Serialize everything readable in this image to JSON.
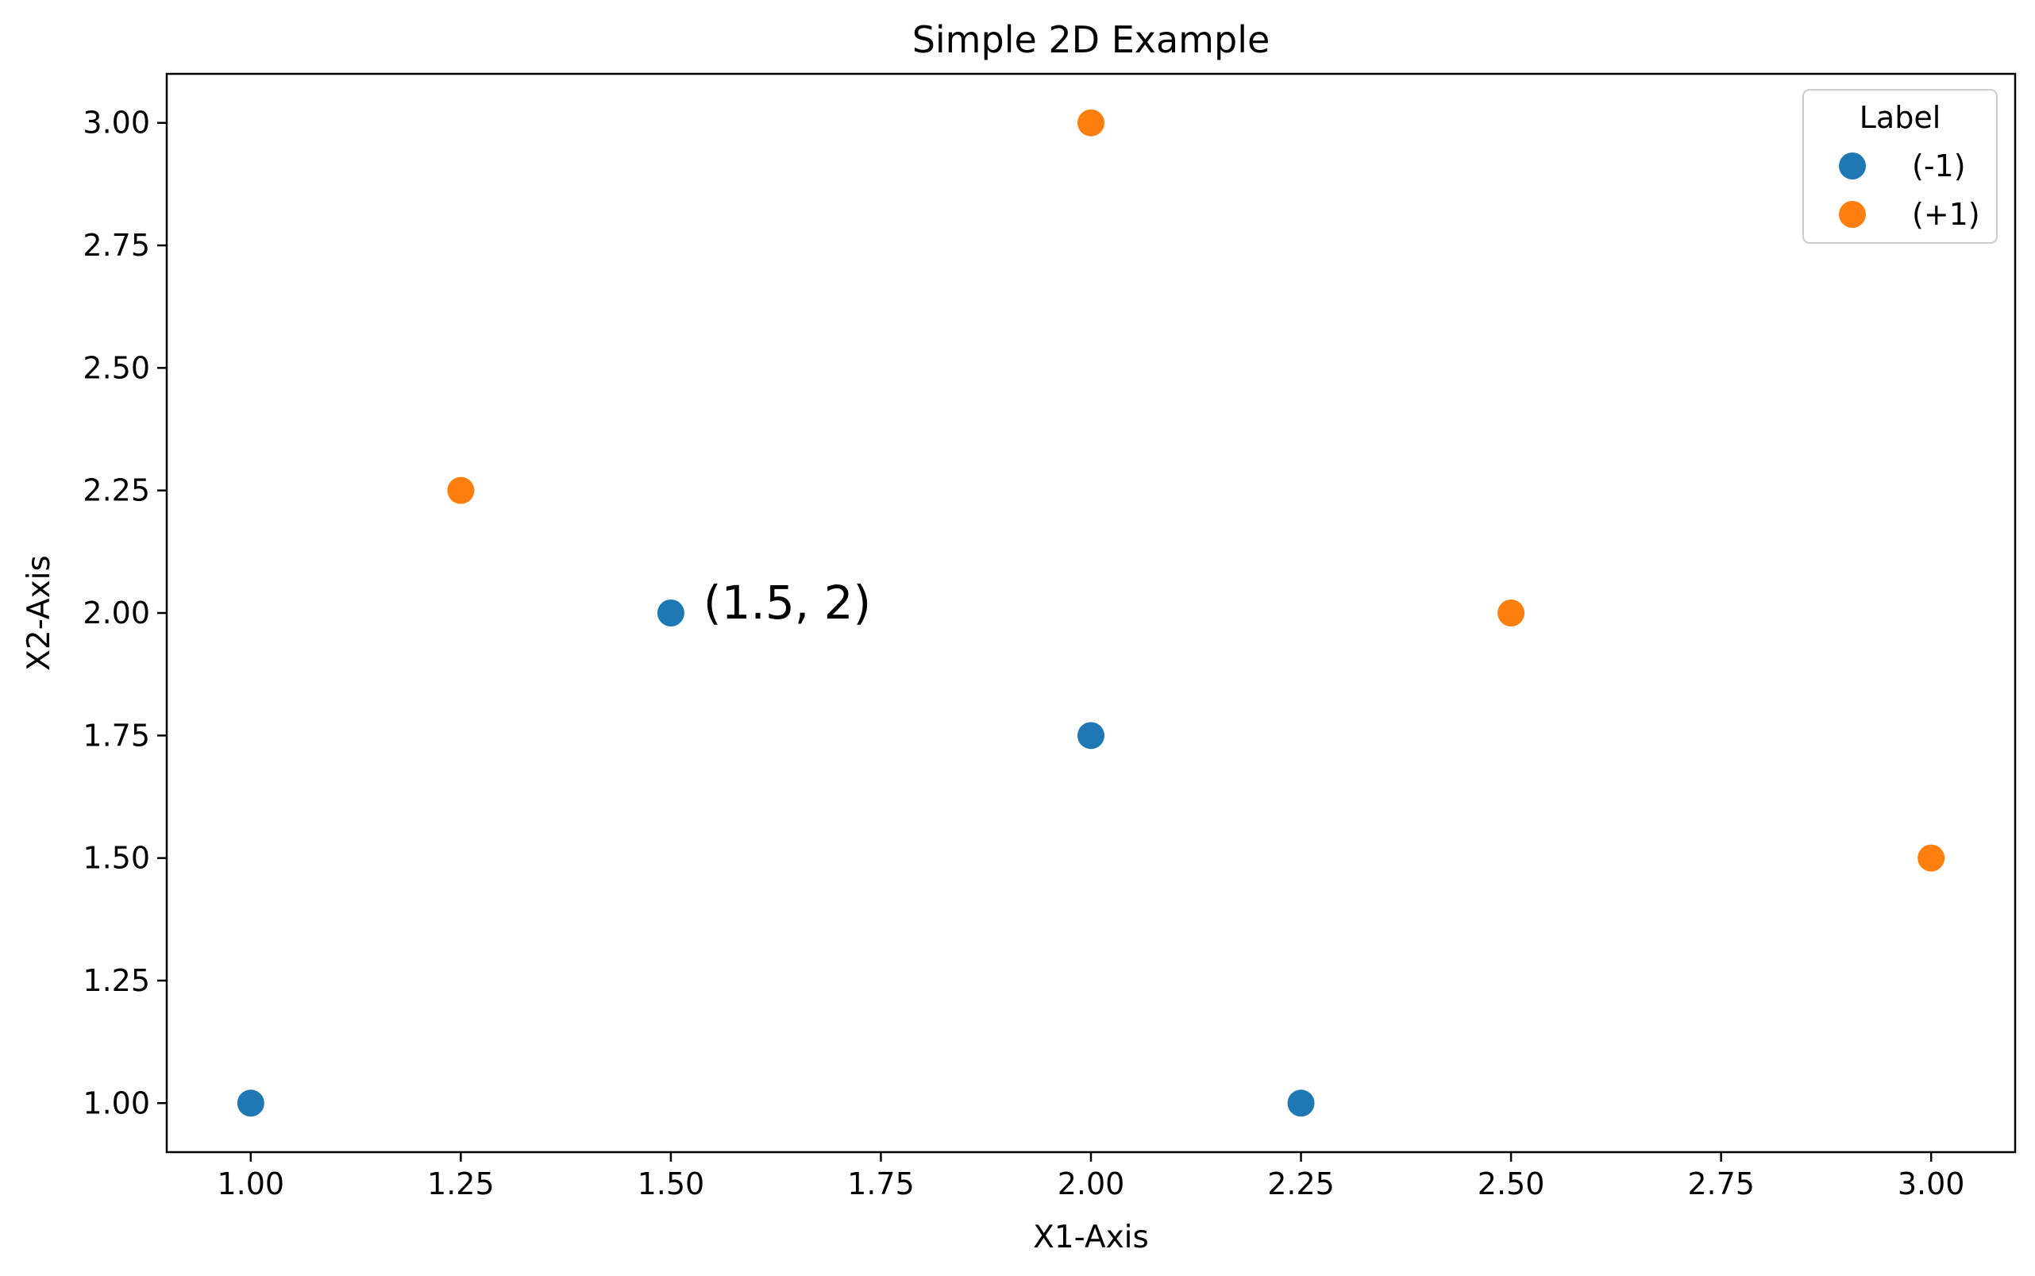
{
  "chart_data": {
    "type": "scatter",
    "title": "Simple 2D Example",
    "xlabel": "X1-Axis",
    "ylabel": "X2-Axis",
    "xlim": [
      0.9,
      3.1
    ],
    "ylim": [
      0.9,
      3.1
    ],
    "xticks": [
      1.0,
      1.25,
      1.5,
      1.75,
      2.0,
      2.25,
      2.5,
      2.75,
      3.0
    ],
    "yticks": [
      1.0,
      1.25,
      1.5,
      1.75,
      2.0,
      2.25,
      2.5,
      2.75,
      3.0
    ],
    "xtick_labels": [
      "1.00",
      "1.25",
      "1.50",
      "1.75",
      "2.00",
      "2.25",
      "2.50",
      "2.75",
      "3.00"
    ],
    "ytick_labels": [
      "1.00",
      "1.25",
      "1.50",
      "1.75",
      "2.00",
      "2.25",
      "2.50",
      "2.75",
      "3.00"
    ],
    "grid": false,
    "legend": {
      "title": "Label",
      "placement": "top-right"
    },
    "series": [
      {
        "name": "(-1)",
        "color": "#1f77b4",
        "points": [
          {
            "x": 1.0,
            "y": 1.0
          },
          {
            "x": 1.5,
            "y": 2.0
          },
          {
            "x": 2.0,
            "y": 1.75
          },
          {
            "x": 2.25,
            "y": 1.0
          }
        ]
      },
      {
        "name": "(+1)",
        "color": "#ff7f0e",
        "points": [
          {
            "x": 1.25,
            "y": 2.25
          },
          {
            "x": 2.0,
            "y": 3.0
          },
          {
            "x": 2.5,
            "y": 2.0
          },
          {
            "x": 3.0,
            "y": 1.5
          }
        ]
      }
    ],
    "annotations": [
      {
        "text": "(1.5, 2)",
        "x": 1.5,
        "y": 2.0
      }
    ]
  }
}
